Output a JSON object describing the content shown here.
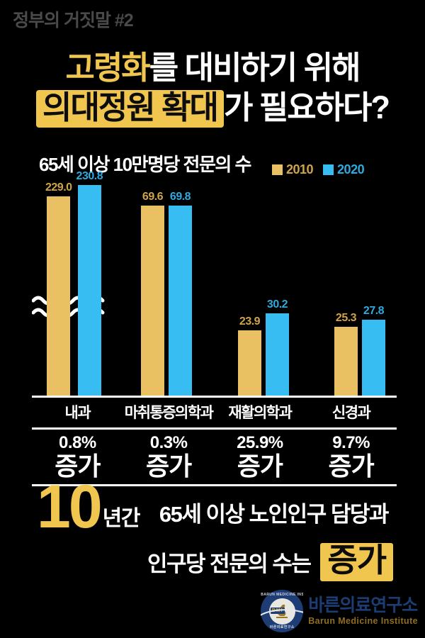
{
  "page": {
    "background": "#000000"
  },
  "colors": {
    "accent_yellow": "#f0c64f",
    "bar_yellow": "#e9c163",
    "bar_blue": "#38bdf2",
    "label_gold": "#cfa44a",
    "label_blue": "#2fa9de",
    "header_gray": "#4a4a4a",
    "logo_navy": "#1c3c74",
    "logo_gold": "#8f6e1e"
  },
  "header": {
    "label": "정부의 거짓말 #2"
  },
  "title": {
    "line1_highlight": "고령화",
    "line1_rest": "를 대비하기 위해",
    "line2_highlight": "의대정원 확대",
    "line2_rest": "가 필요하다?"
  },
  "chart_data": {
    "type": "bar",
    "title": "65세 이상 10만명당 전문의 수",
    "categories": [
      "내과",
      "마취통증의학과",
      "재활의학과",
      "신경과"
    ],
    "series": [
      {
        "name": "2010",
        "color": "#e9c163",
        "label_color": "#cfa44a",
        "values": [
          229.0,
          69.6,
          23.9,
          25.3
        ]
      },
      {
        "name": "2020",
        "color": "#38bdf2",
        "label_color": "#2fa9de",
        "values": [
          230.8,
          69.8,
          30.2,
          27.8
        ]
      }
    ],
    "xlabel": "",
    "ylabel": "",
    "value_labels": true,
    "legend_position": "top-right",
    "grid": false,
    "broken_axis": true,
    "broken_axis_category": "내과"
  },
  "table": {
    "increase_label": "증가",
    "rows": [
      {
        "category": "내과",
        "pct": "0.8%"
      },
      {
        "category": "마취통증의학과",
        "pct": "0.3%"
      },
      {
        "category": "재활의학과",
        "pct": "25.9%"
      },
      {
        "category": "신경과",
        "pct": "9.7%"
      }
    ]
  },
  "conclusion": {
    "big_number": "10",
    "suffix": "년간",
    "line1": "65세 이상 노인인구 담당과",
    "line2": "인구당 전문의 수는",
    "highlight": "증가"
  },
  "logo": {
    "monogram": "BMI",
    "ring_top": "BARUN MEDICINE INSTITUTE",
    "ring_bottom": "바른의료연구소",
    "name_ko": "바른의료연구소",
    "name_en": "Barun Medicine Institute"
  }
}
